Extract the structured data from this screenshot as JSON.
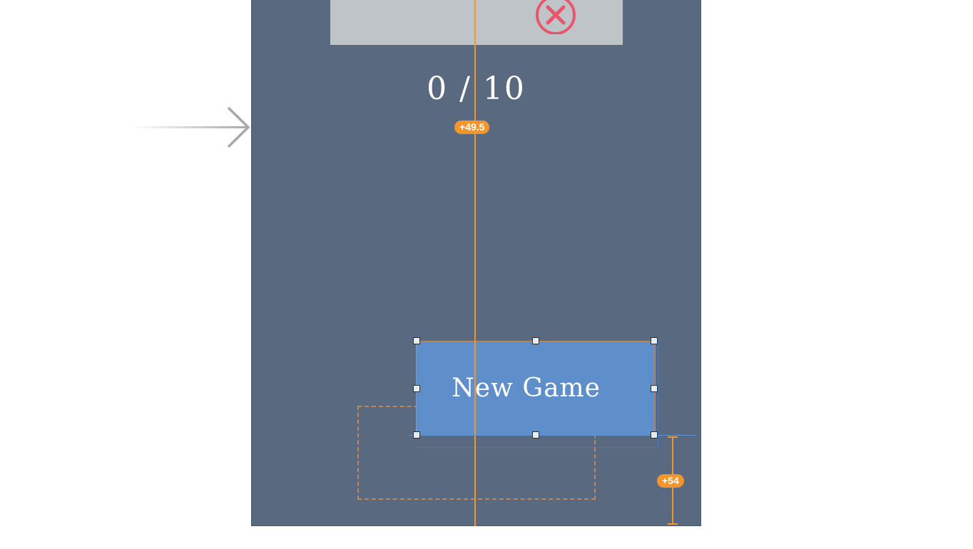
{
  "scene": {
    "score_label": "0 / 10",
    "button_label": "New Game"
  },
  "constraints": {
    "score_offset": "+49.5",
    "button_bottom_offset": "+54"
  },
  "icons": {
    "close": "close-circle-icon",
    "entry": "storyboard-entry-arrow-icon"
  },
  "colors": {
    "view_background": "#596a80",
    "top_panel": "#bfc4c9",
    "close_icon": "#e8566b",
    "button_background": "#5f8fca",
    "constraint": "#f3952b",
    "guide": "#5b93d6"
  }
}
